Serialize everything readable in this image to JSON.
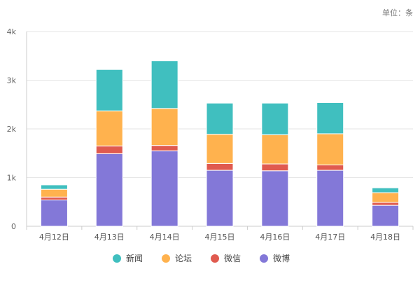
{
  "unit_label": "单位：条",
  "chart_data": {
    "type": "bar",
    "stacked": true,
    "categories": [
      "4月12日",
      "4月13日",
      "4月14日",
      "4月15日",
      "4月16日",
      "4月17日",
      "4月18日"
    ],
    "series": [
      {
        "name": "微博",
        "color": "#8378d8",
        "values": [
          540,
          1490,
          1550,
          1150,
          1140,
          1150,
          430
        ]
      },
      {
        "name": "微信",
        "color": "#e05a4f",
        "values": [
          60,
          160,
          110,
          140,
          140,
          110,
          60
        ]
      },
      {
        "name": "论坛",
        "color": "#ffb24e",
        "values": [
          160,
          720,
          760,
          600,
          600,
          640,
          200
        ]
      },
      {
        "name": "新闻",
        "color": "#40bfbf",
        "values": [
          90,
          850,
          980,
          640,
          650,
          640,
          100
        ]
      }
    ],
    "ylim": [
      0,
      4000
    ],
    "yticks": [
      {
        "value": 0,
        "label": "0"
      },
      {
        "value": 1000,
        "label": "1k"
      },
      {
        "value": 2000,
        "label": "2k"
      },
      {
        "value": 3000,
        "label": "3k"
      },
      {
        "value": 4000,
        "label": "4k"
      }
    ],
    "legend": {
      "placement": "bottom",
      "order": [
        "新闻",
        "论坛",
        "微信",
        "微博"
      ]
    },
    "grid": true
  }
}
